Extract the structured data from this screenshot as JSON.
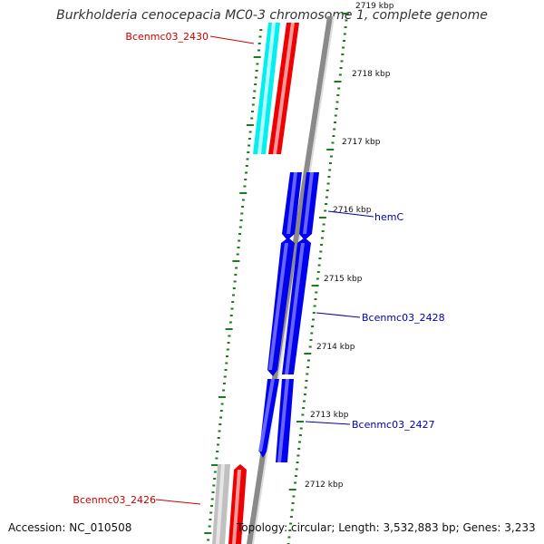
{
  "title": "Burkholderia cenocepacia MC0-3 chromosome 1, complete genome",
  "accession": "Accession: NC_010508",
  "topology": "Topology: circular; Length: 3,532,883 bp; Genes: 3,233",
  "ruler": {
    "ticks": [
      {
        "label": "2719 kbp"
      },
      {
        "label": "2718 kbp"
      },
      {
        "label": "2717 kbp"
      },
      {
        "label": "2716 kbp"
      },
      {
        "label": "2715 kbp"
      },
      {
        "label": "2714 kbp"
      },
      {
        "label": "2713 kbp"
      },
      {
        "label": "2712 kbp"
      }
    ]
  },
  "genes": [
    {
      "name": "Bcenmc03_2430",
      "label_color": "#cc0000"
    },
    {
      "name": "hemC",
      "label_color": "#0000aa"
    },
    {
      "name": "Bcenmc03_2428",
      "label_color": "#0000aa"
    },
    {
      "name": "Bcenmc03_2427",
      "label_color": "#0000aa"
    },
    {
      "name": "Bcenmc03_2426",
      "label_color": "#cc0000"
    }
  ],
  "colors": {
    "cds": "#0000ee",
    "cds_light": "#6666ff",
    "gene_red": "#ee0000",
    "gene_cyan": "#00f0f0",
    "gene_gray": "#c0c0c0",
    "backbone": "#8a8a8a",
    "tick_green": "#227722"
  }
}
